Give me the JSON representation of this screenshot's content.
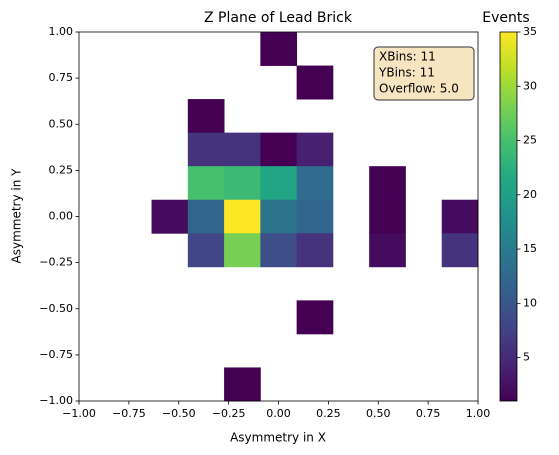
{
  "chart_data": {
    "type": "heatmap",
    "title": "Z Plane of Lead Brick",
    "x_label": "Asymmetry in X",
    "y_label": "Asymmetry in Y",
    "colorbar_label": "Events",
    "annotation": [
      "XBins: 11",
      "YBins: 11",
      "Overflow: 5.0"
    ],
    "colormap": "viridis",
    "xlim": [
      -1,
      1
    ],
    "ylim": [
      -1,
      1
    ],
    "clim": [
      1,
      35
    ],
    "xticks": [
      {
        "value": -1,
        "label": "−1.00"
      },
      {
        "value": -0.75,
        "label": "−0.75"
      },
      {
        "value": -0.5,
        "label": "−0.50"
      },
      {
        "value": -0.25,
        "label": "−0.25"
      },
      {
        "value": 0,
        "label": "0.00"
      },
      {
        "value": 0.25,
        "label": "0.25"
      },
      {
        "value": 0.5,
        "label": "0.50"
      },
      {
        "value": 0.75,
        "label": "0.75"
      },
      {
        "value": 1,
        "label": "1.00"
      }
    ],
    "yticks": [
      {
        "value": -1,
        "label": "−1.00"
      },
      {
        "value": -0.75,
        "label": "−0.75"
      },
      {
        "value": -0.5,
        "label": "−0.50"
      },
      {
        "value": -0.25,
        "label": "−0.25"
      },
      {
        "value": 0,
        "label": "0.00"
      },
      {
        "value": 0.25,
        "label": "0.25"
      },
      {
        "value": 0.5,
        "label": "0.50"
      },
      {
        "value": 0.75,
        "label": "0.75"
      },
      {
        "value": 1,
        "label": "1.00"
      }
    ],
    "cticks": [
      5,
      10,
      15,
      20,
      25,
      30,
      35
    ],
    "z": [
      [
        null,
        null,
        null,
        null,
        null,
        1,
        null,
        null,
        null,
        null,
        null
      ],
      [
        null,
        null,
        null,
        null,
        null,
        null,
        1,
        null,
        null,
        null,
        null
      ],
      [
        null,
        null,
        null,
        1,
        null,
        null,
        null,
        null,
        null,
        null,
        null
      ],
      [
        null,
        null,
        null,
        6,
        6,
        1,
        4,
        null,
        null,
        null,
        null
      ],
      [
        null,
        null,
        null,
        25,
        24,
        21,
        13,
        null,
        1,
        null,
        null
      ],
      [
        null,
        null,
        2,
        12,
        35,
        14,
        12,
        null,
        1,
        null,
        2
      ],
      [
        null,
        null,
        null,
        8,
        28,
        9,
        6,
        null,
        2,
        null,
        6
      ],
      [
        null,
        null,
        null,
        null,
        null,
        null,
        null,
        null,
        null,
        null,
        null
      ],
      [
        null,
        null,
        null,
        null,
        null,
        null,
        1,
        null,
        null,
        null,
        null
      ],
      [
        null,
        null,
        null,
        null,
        null,
        null,
        null,
        null,
        null,
        null,
        null
      ],
      [
        null,
        null,
        null,
        null,
        1,
        null,
        null,
        null,
        null,
        null,
        null
      ]
    ]
  }
}
